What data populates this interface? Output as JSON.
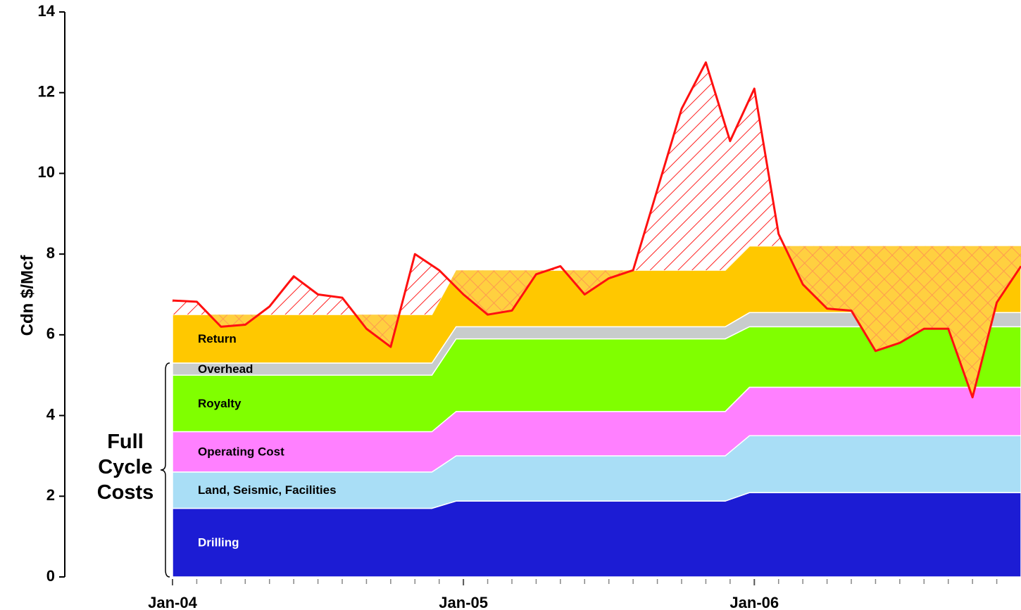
{
  "chart_data": {
    "type": "stacked-area",
    "y_label": "Cdn $/Mcf",
    "annotation": "Full Cycle Costs",
    "cost_x": [
      0,
      10.7,
      11.7,
      22.8,
      23.8,
      35
    ],
    "series": [
      {
        "name": "Drilling",
        "color": "#1c1cd4",
        "values": [
          1.7,
          1.7,
          1.88,
          1.88,
          2.09,
          2.09
        ]
      },
      {
        "name": "Land, Seismic, Facilities",
        "color": "#a9def6",
        "values": [
          0.9,
          0.9,
          1.12,
          1.12,
          1.41,
          1.41
        ]
      },
      {
        "name": "Operating Cost",
        "color": "#ff80ff",
        "values": [
          1.0,
          1.0,
          1.1,
          1.1,
          1.2,
          1.2
        ]
      },
      {
        "name": "Royalty",
        "color": "#80ff00",
        "values": [
          1.4,
          1.4,
          1.8,
          1.8,
          1.5,
          1.5
        ]
      },
      {
        "name": "Overhead",
        "color": "#c8cccc",
        "values": [
          0.3,
          0.3,
          0.3,
          0.3,
          0.35,
          0.35
        ]
      },
      {
        "name": "Return",
        "color": "#ffc800",
        "values": [
          1.2,
          1.2,
          1.4,
          1.4,
          1.65,
          1.65
        ]
      }
    ],
    "price": {
      "color": "#ff1010",
      "x": [
        0,
        1,
        2,
        3,
        4,
        5,
        6,
        7,
        8,
        9,
        10,
        11,
        12,
        13,
        14,
        15,
        16,
        17,
        18,
        19,
        20,
        21,
        22,
        23,
        24,
        25,
        26,
        27,
        28,
        29,
        30,
        31,
        32,
        33,
        34,
        35
      ],
      "values": [
        6.85,
        6.82,
        6.2,
        6.25,
        6.7,
        7.45,
        7.0,
        6.92,
        6.15,
        5.7,
        8.0,
        7.6,
        7.0,
        6.5,
        6.6,
        7.5,
        7.7,
        7.0,
        7.4,
        7.6,
        9.6,
        11.6,
        12.75,
        10.8,
        12.1,
        8.5,
        7.25,
        6.65,
        6.6,
        5.6,
        5.8,
        6.15,
        6.15,
        4.45,
        6.8,
        7.7
      ]
    },
    "xlim": [
      0,
      35
    ],
    "xticks": [
      {
        "value": 0,
        "label": "Jan-04"
      },
      {
        "value": 12,
        "label": "Jan-05"
      },
      {
        "value": 24,
        "label": "Jan-06"
      }
    ],
    "xminorticks": [
      1,
      2,
      3,
      4,
      5,
      6,
      7,
      8,
      9,
      10,
      11,
      13,
      14,
      15,
      16,
      17,
      18,
      19,
      20,
      21,
      22,
      23,
      25,
      26,
      27,
      28,
      29,
      30,
      31,
      32,
      33,
      34
    ],
    "ylim": [
      0,
      14
    ],
    "yticks": [
      0,
      2,
      4,
      6,
      8,
      10,
      12,
      14
    ]
  }
}
